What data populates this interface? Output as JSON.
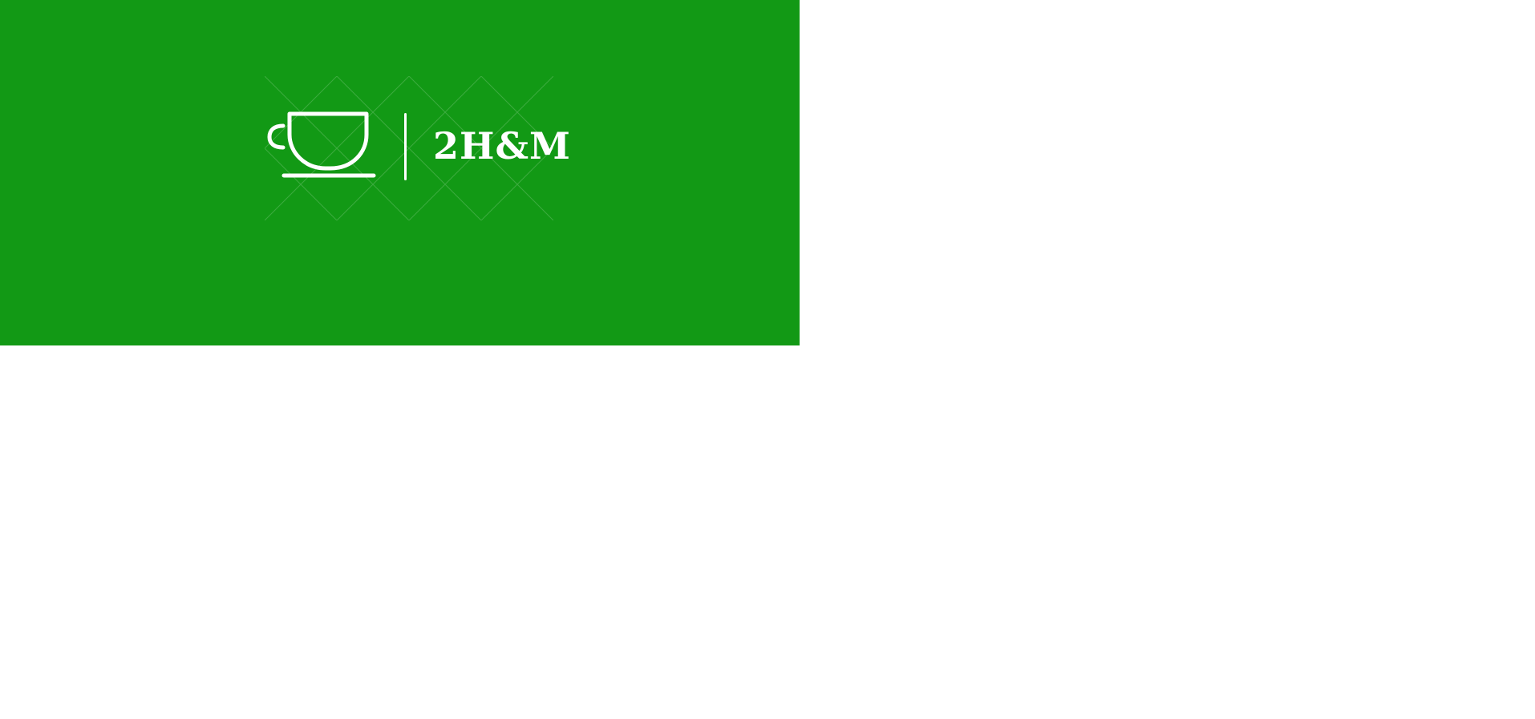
{
  "banner": {
    "background_color": "#129915",
    "foreground_color": "#ffffff"
  },
  "logo": {
    "icon": "coffee-cup-icon",
    "brand_name": "2H&M"
  },
  "watermark": {
    "icon": "watermark-pattern"
  }
}
